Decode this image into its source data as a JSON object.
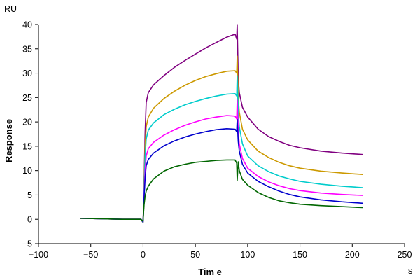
{
  "chart_data": {
    "type": "line",
    "xlabel": "Tim e",
    "ylabel": "Response",
    "x_unit": "s",
    "y_unit": "RU",
    "xlim": [
      -100,
      250
    ],
    "ylim": [
      -5,
      40
    ],
    "xticks": [
      -100,
      -50,
      0,
      50,
      100,
      150,
      200,
      250
    ],
    "yticks": [
      -5,
      0,
      5,
      10,
      15,
      20,
      25,
      30,
      35,
      40
    ],
    "grid": false,
    "legend": "none",
    "series": [
      {
        "color": "#800080",
        "points": [
          [
            -60,
            0.2
          ],
          [
            -40,
            0.1
          ],
          [
            -20,
            0.0
          ],
          [
            -2,
            0.0
          ],
          [
            0,
            -0.7
          ],
          [
            0.5,
            3
          ],
          [
            1,
            8
          ],
          [
            2,
            18
          ],
          [
            3,
            24
          ],
          [
            5,
            26
          ],
          [
            10,
            27.6
          ],
          [
            20,
            29.5
          ],
          [
            30,
            31.2
          ],
          [
            40,
            32.6
          ],
          [
            50,
            33.9
          ],
          [
            60,
            35.2
          ],
          [
            70,
            36.3
          ],
          [
            80,
            37.4
          ],
          [
            88,
            38.0
          ],
          [
            89.5,
            37.0
          ],
          [
            90,
            40.0
          ],
          [
            91,
            29
          ],
          [
            92,
            26
          ],
          [
            95,
            23
          ],
          [
            100,
            21
          ],
          [
            110,
            18.5
          ],
          [
            120,
            17
          ],
          [
            130,
            16
          ],
          [
            140,
            15.2
          ],
          [
            150,
            14.7
          ],
          [
            170,
            14.0
          ],
          [
            190,
            13.6
          ],
          [
            210,
            13.3
          ]
        ]
      },
      {
        "color": "#cc9900",
        "points": [
          [
            -60,
            0.2
          ],
          [
            -40,
            0.1
          ],
          [
            -20,
            0.0
          ],
          [
            -2,
            0.0
          ],
          [
            0,
            -0.6
          ],
          [
            0.5,
            3
          ],
          [
            1,
            7
          ],
          [
            2,
            15
          ],
          [
            3,
            19
          ],
          [
            5,
            21
          ],
          [
            10,
            22.8
          ],
          [
            20,
            24.8
          ],
          [
            30,
            26.3
          ],
          [
            40,
            27.5
          ],
          [
            50,
            28.5
          ],
          [
            60,
            29.3
          ],
          [
            70,
            29.9
          ],
          [
            80,
            30.4
          ],
          [
            88,
            30.5
          ],
          [
            89.5,
            30.0
          ],
          [
            90,
            33.5
          ],
          [
            91,
            25
          ],
          [
            92,
            22
          ],
          [
            95,
            18.5
          ],
          [
            100,
            16.3
          ],
          [
            110,
            14
          ],
          [
            120,
            12.7
          ],
          [
            130,
            11.7
          ],
          [
            140,
            11
          ],
          [
            150,
            10.5
          ],
          [
            170,
            9.9
          ],
          [
            190,
            9.5
          ],
          [
            210,
            9.2
          ]
        ]
      },
      {
        "color": "#00cccc",
        "points": [
          [
            -60,
            0.2
          ],
          [
            -40,
            0.1
          ],
          [
            -20,
            0.0
          ],
          [
            -2,
            0.0
          ],
          [
            0,
            -0.6
          ],
          [
            0.5,
            2.5
          ],
          [
            1,
            6
          ],
          [
            2,
            13
          ],
          [
            3,
            16.5
          ],
          [
            5,
            18.3
          ],
          [
            10,
            19.8
          ],
          [
            20,
            21.5
          ],
          [
            30,
            22.6
          ],
          [
            40,
            23.5
          ],
          [
            50,
            24.2
          ],
          [
            60,
            24.8
          ],
          [
            70,
            25.3
          ],
          [
            80,
            25.7
          ],
          [
            88,
            25.8
          ],
          [
            89.5,
            25.3
          ],
          [
            90,
            29.5
          ],
          [
            91,
            22
          ],
          [
            92,
            19
          ],
          [
            95,
            15.5
          ],
          [
            100,
            13
          ],
          [
            110,
            11
          ],
          [
            120,
            9.8
          ],
          [
            130,
            8.9
          ],
          [
            140,
            8.3
          ],
          [
            150,
            7.8
          ],
          [
            170,
            7.2
          ],
          [
            190,
            6.8
          ],
          [
            210,
            6.5
          ]
        ]
      },
      {
        "color": "#ff00ff",
        "points": [
          [
            -60,
            0.2
          ],
          [
            -40,
            0.1
          ],
          [
            -20,
            0.0
          ],
          [
            -2,
            0.0
          ],
          [
            0,
            -0.5
          ],
          [
            0.5,
            2
          ],
          [
            1,
            5
          ],
          [
            2,
            10
          ],
          [
            3,
            13
          ],
          [
            5,
            14.5
          ],
          [
            10,
            15.8
          ],
          [
            20,
            17.3
          ],
          [
            30,
            18.4
          ],
          [
            40,
            19.3
          ],
          [
            50,
            20
          ],
          [
            60,
            20.6
          ],
          [
            70,
            21
          ],
          [
            80,
            21.3
          ],
          [
            88,
            21.2
          ],
          [
            89.5,
            20.6
          ],
          [
            90,
            24.5
          ],
          [
            91,
            18
          ],
          [
            92,
            15.5
          ],
          [
            95,
            12.5
          ],
          [
            100,
            10.5
          ],
          [
            110,
            8.8
          ],
          [
            120,
            7.7
          ],
          [
            130,
            6.9
          ],
          [
            140,
            6.3
          ],
          [
            150,
            5.9
          ],
          [
            170,
            5.4
          ],
          [
            190,
            5.1
          ],
          [
            210,
            4.9
          ]
        ]
      },
      {
        "color": "#0000cc",
        "points": [
          [
            -60,
            0.2
          ],
          [
            -40,
            0.1
          ],
          [
            -20,
            0.0
          ],
          [
            -2,
            0.0
          ],
          [
            0,
            -0.5
          ],
          [
            0.5,
            2
          ],
          [
            1,
            4.5
          ],
          [
            2,
            8.5
          ],
          [
            3,
            11
          ],
          [
            5,
            12.3
          ],
          [
            10,
            13.6
          ],
          [
            20,
            15.1
          ],
          [
            30,
            16.1
          ],
          [
            40,
            16.9
          ],
          [
            50,
            17.5
          ],
          [
            60,
            18
          ],
          [
            70,
            18.4
          ],
          [
            80,
            18.6
          ],
          [
            88,
            18.5
          ],
          [
            89.5,
            18
          ],
          [
            90,
            20.5
          ],
          [
            91,
            16
          ],
          [
            92,
            14
          ],
          [
            95,
            11.3
          ],
          [
            100,
            9.5
          ],
          [
            110,
            7.8
          ],
          [
            120,
            6.7
          ],
          [
            130,
            5.8
          ],
          [
            140,
            5.1
          ],
          [
            150,
            4.6
          ],
          [
            170,
            4
          ],
          [
            190,
            3.6
          ],
          [
            210,
            3.3
          ]
        ]
      },
      {
        "color": "#006600",
        "points": [
          [
            -60,
            0.2
          ],
          [
            -40,
            0.1
          ],
          [
            -20,
            0.0
          ],
          [
            -2,
            0.0
          ],
          [
            0,
            -0.4
          ],
          [
            0.5,
            1.5
          ],
          [
            1,
            3
          ],
          [
            2,
            4.8
          ],
          [
            3,
            5.8
          ],
          [
            5,
            6.8
          ],
          [
            10,
            8.3
          ],
          [
            20,
            9.9
          ],
          [
            30,
            10.8
          ],
          [
            40,
            11.3
          ],
          [
            50,
            11.7
          ],
          [
            60,
            11.9
          ],
          [
            70,
            12.1
          ],
          [
            80,
            12.2
          ],
          [
            88,
            12.2
          ],
          [
            89.5,
            11.5
          ],
          [
            90,
            8.0
          ],
          [
            91,
            11.8
          ],
          [
            92,
            10
          ],
          [
            95,
            8.2
          ],
          [
            100,
            7
          ],
          [
            110,
            5.5
          ],
          [
            120,
            4.5
          ],
          [
            130,
            3.8
          ],
          [
            140,
            3.4
          ],
          [
            150,
            3.1
          ],
          [
            170,
            2.8
          ],
          [
            190,
            2.6
          ],
          [
            210,
            2.4
          ]
        ]
      }
    ]
  }
}
